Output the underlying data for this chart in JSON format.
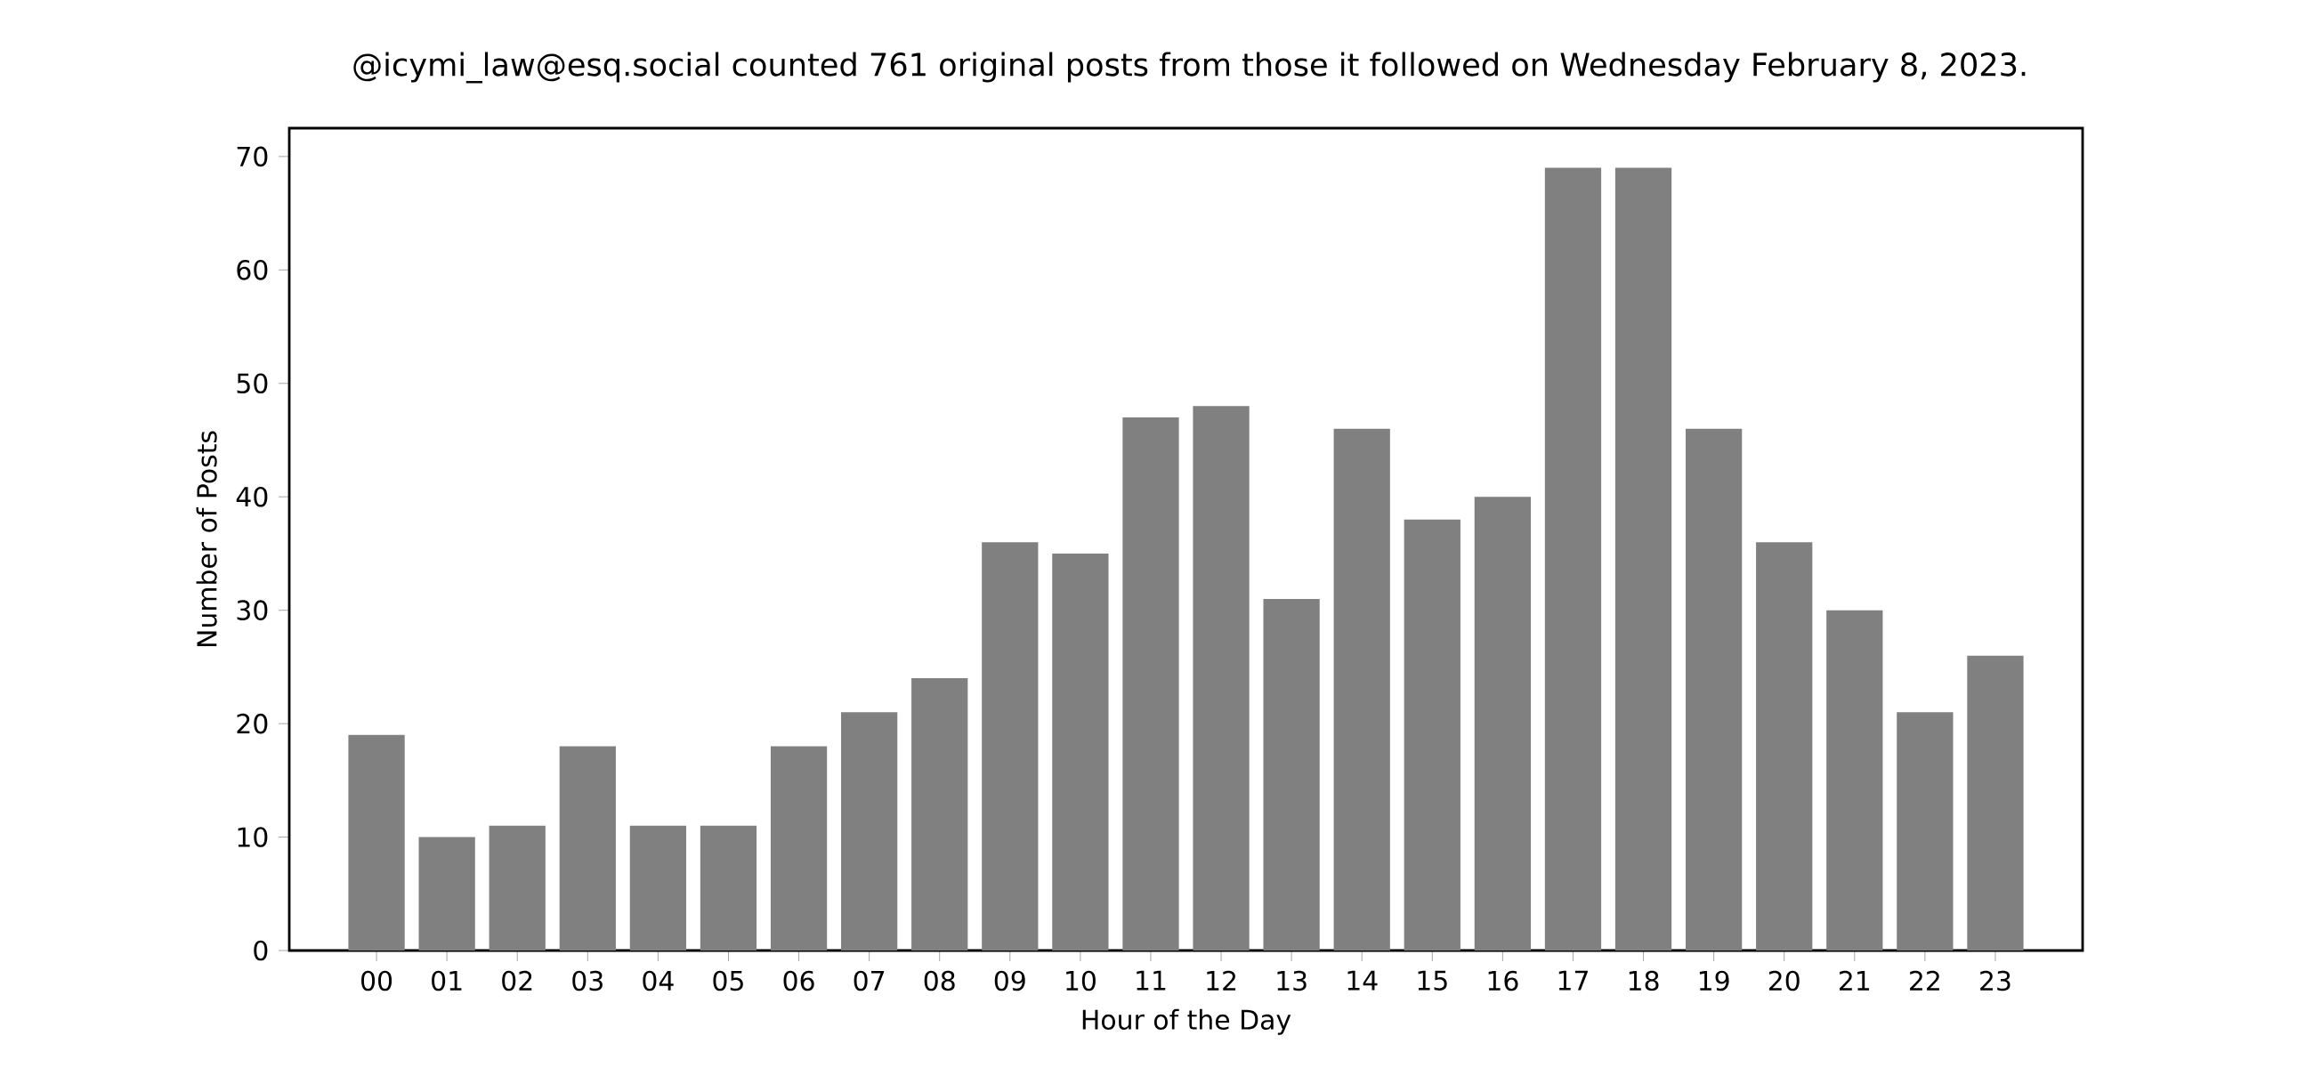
{
  "chart_data": {
    "type": "bar",
    "title": "@icymi_law@esq.social counted 761 original posts from those it followed on Wednesday February 8, 2023.",
    "xlabel": "Hour of the Day",
    "ylabel": "Number of Posts",
    "categories": [
      "00",
      "01",
      "02",
      "03",
      "04",
      "05",
      "06",
      "07",
      "08",
      "09",
      "10",
      "11",
      "12",
      "13",
      "14",
      "15",
      "16",
      "17",
      "18",
      "19",
      "20",
      "21",
      "22",
      "23"
    ],
    "values": [
      19,
      10,
      11,
      18,
      11,
      11,
      18,
      21,
      24,
      36,
      35,
      47,
      48,
      31,
      46,
      38,
      40,
      69,
      69,
      46,
      36,
      30,
      21,
      26
    ],
    "color": "#808080",
    "ylim": [
      0,
      72.5
    ],
    "yticks": [
      0,
      10,
      20,
      30,
      40,
      50,
      60,
      70
    ]
  }
}
